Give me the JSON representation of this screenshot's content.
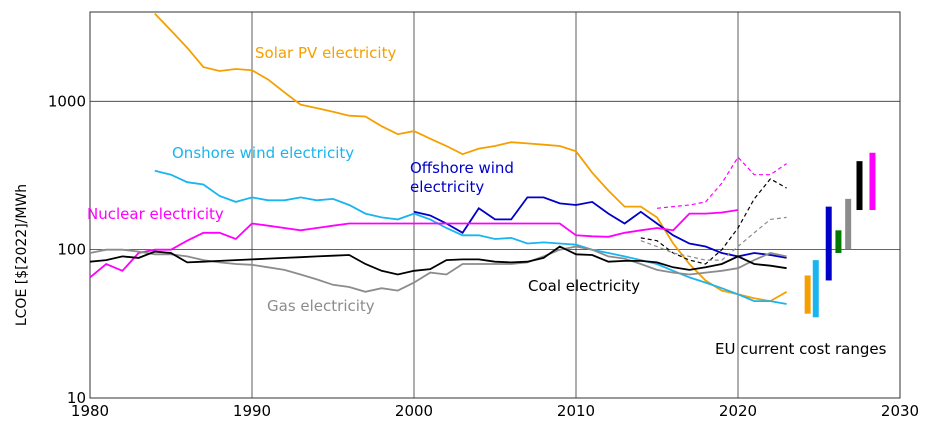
{
  "chart_data": {
    "type": "line",
    "y_label": "LCOE [$[2022]/MWh",
    "log_y": true,
    "grid": true,
    "xlim": [
      1980,
      2030
    ],
    "xticks": [
      1980,
      1990,
      2000,
      2010,
      2020,
      2030
    ],
    "ylim": [
      10,
      4000
    ],
    "yticks": [
      10,
      100,
      1000
    ],
    "x": [
      1980,
      1981,
      1982,
      1983,
      1984,
      1985,
      1986,
      1987,
      1988,
      1989,
      1990,
      1991,
      1992,
      1993,
      1994,
      1995,
      1996,
      1997,
      1998,
      1999,
      2000,
      2001,
      2002,
      2003,
      2004,
      2005,
      2006,
      2007,
      2008,
      2009,
      2010,
      2011,
      2012,
      2013,
      2014,
      2015,
      2016,
      2017,
      2018,
      2019,
      2020,
      2021,
      2022,
      2023
    ],
    "series": [
      {
        "name": "Solar PV electricity",
        "color": "#f5a000",
        "values": [
          null,
          null,
          null,
          null,
          3900,
          3000,
          2300,
          1700,
          1600,
          1650,
          1620,
          1400,
          1150,
          950,
          900,
          850,
          800,
          790,
          680,
          600,
          630,
          560,
          500,
          440,
          480,
          500,
          530,
          520,
          510,
          500,
          460,
          330,
          250,
          195,
          195,
          165,
          110,
          80,
          62,
          53,
          50,
          47,
          45,
          52
        ]
      },
      {
        "name": "Onshore wind electricity",
        "color": "#1ab4f0",
        "values": [
          null,
          null,
          null,
          null,
          340,
          320,
          285,
          275,
          230,
          210,
          225,
          215,
          215,
          225,
          215,
          220,
          200,
          175,
          165,
          160,
          175,
          160,
          140,
          125,
          125,
          118,
          120,
          110,
          112,
          110,
          108,
          100,
          95,
          90,
          85,
          80,
          72,
          65,
          60,
          55,
          50,
          45,
          45,
          43
        ]
      },
      {
        "name": "Offshore wind electricity",
        "color": "#0000c8",
        "values": [
          null,
          null,
          null,
          null,
          null,
          null,
          null,
          null,
          null,
          null,
          null,
          null,
          null,
          null,
          null,
          null,
          null,
          null,
          null,
          null,
          180,
          170,
          150,
          130,
          190,
          160,
          160,
          225,
          225,
          205,
          200,
          210,
          175,
          150,
          180,
          150,
          125,
          110,
          105,
          95,
          90,
          95,
          92,
          88
        ]
      },
      {
        "name": "Nuclear electricity",
        "color": "#ff00ff",
        "values": [
          65,
          80,
          72,
          95,
          100,
          100,
          115,
          130,
          130,
          118,
          150,
          145,
          140,
          135,
          140,
          145,
          150,
          150,
          150,
          150,
          150,
          150,
          150,
          150,
          150,
          150,
          150,
          150,
          150,
          150,
          125,
          123,
          122,
          130,
          135,
          140,
          135,
          175,
          175,
          178,
          185,
          null,
          null,
          null
        ]
      },
      {
        "name": "Gas electricity",
        "color": "#8c8c8c",
        "values": [
          95,
          100,
          100,
          97,
          93,
          93,
          90,
          85,
          82,
          80,
          79,
          76,
          73,
          68,
          63,
          58,
          56,
          52,
          55,
          53,
          60,
          70,
          68,
          80,
          80,
          80,
          80,
          82,
          90,
          100,
          105,
          100,
          90,
          87,
          80,
          73,
          70,
          68,
          70,
          72,
          75,
          85,
          95,
          90
        ]
      },
      {
        "name": "Coal electricity",
        "color": "#000000",
        "values": [
          83,
          85,
          90,
          88,
          97,
          95,
          82,
          83,
          84,
          85,
          86,
          87,
          88,
          89,
          90,
          91,
          92,
          80,
          72,
          68,
          72,
          74,
          85,
          86,
          86,
          83,
          82,
          83,
          88,
          105,
          93,
          92,
          83,
          84,
          84,
          82,
          76,
          73,
          76,
          80,
          90,
          80,
          78,
          75
        ]
      },
      {
        "color": "#ff00ff",
        "dashed": true,
        "values": [
          null,
          null,
          null,
          null,
          null,
          null,
          null,
          null,
          null,
          null,
          null,
          null,
          null,
          null,
          null,
          null,
          null,
          null,
          null,
          null,
          null,
          null,
          null,
          null,
          null,
          null,
          null,
          null,
          null,
          null,
          null,
          null,
          null,
          null,
          null,
          190,
          195,
          200,
          210,
          280,
          420,
          320,
          320,
          380
        ]
      },
      {
        "color": "#000000",
        "dashed": true,
        "values": [
          null,
          null,
          null,
          null,
          null,
          null,
          null,
          null,
          null,
          null,
          null,
          null,
          null,
          null,
          null,
          null,
          null,
          null,
          null,
          null,
          null,
          null,
          null,
          null,
          null,
          null,
          null,
          null,
          null,
          null,
          null,
          null,
          null,
          null,
          120,
          115,
          95,
          85,
          80,
          100,
          140,
          220,
          300,
          260
        ]
      },
      {
        "color": "#8c8c8c",
        "dashed": true,
        "values": [
          null,
          null,
          null,
          null,
          null,
          null,
          null,
          null,
          null,
          null,
          null,
          null,
          null,
          null,
          null,
          null,
          null,
          null,
          null,
          null,
          null,
          null,
          null,
          null,
          null,
          null,
          null,
          null,
          null,
          null,
          null,
          null,
          null,
          null,
          115,
          105,
          95,
          90,
          85,
          85,
          105,
          130,
          160,
          165
        ]
      }
    ],
    "ranges_label": "EU current cost ranges",
    "ranges": [
      {
        "x": 2024.3,
        "low": 37,
        "high": 67,
        "color": "#f5a000"
      },
      {
        "x": 2024.8,
        "low": 35,
        "high": 85,
        "color": "#1ab4f0"
      },
      {
        "x": 2025.6,
        "low": 62,
        "high": 195,
        "color": "#0000c8"
      },
      {
        "x": 2026.2,
        "low": 95,
        "high": 135,
        "color": "#007a00"
      },
      {
        "x": 2026.8,
        "low": 100,
        "high": 220,
        "color": "#8c8c8c"
      },
      {
        "x": 2027.5,
        "low": 185,
        "high": 395,
        "color": "#000000"
      },
      {
        "x": 2028.3,
        "low": 185,
        "high": 450,
        "color": "#ff00ff"
      }
    ]
  }
}
